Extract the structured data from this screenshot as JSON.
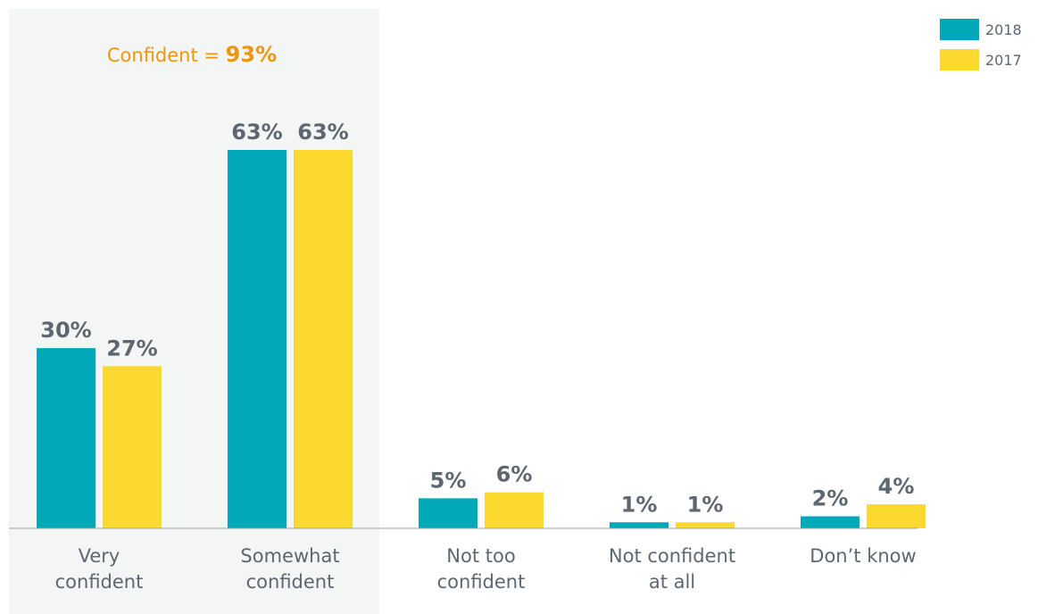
{
  "chart_data": {
    "type": "bar",
    "categories": [
      [
        "Very",
        "confident"
      ],
      [
        "Somewhat",
        "confident"
      ],
      [
        "Not too",
        "confident"
      ],
      [
        "Not confident",
        "at all"
      ],
      [
        "Don’t know"
      ]
    ],
    "series": [
      {
        "name": "2018",
        "color": "#00a8b8",
        "values": [
          30,
          63,
          5,
          1,
          2
        ],
        "labels": [
          "30%",
          "63%",
          "5%",
          "1%",
          "2%"
        ]
      },
      {
        "name": "2017",
        "color": "#fbd92e",
        "values": [
          27,
          63,
          6,
          1,
          4
        ],
        "labels": [
          "27%",
          "63%",
          "6%",
          "1%",
          "4%"
        ]
      }
    ],
    "ylim": [
      0,
      70
    ],
    "grid": false,
    "legend_position": "top-right",
    "highlight": {
      "categories": [
        "Very confident",
        "Somewhat confident"
      ],
      "background": "#f4f5f5",
      "annotation_prefix": "Confident = ",
      "annotation_value": "93%",
      "annotation_color": "#f0960e"
    },
    "text_color": "#5e6670"
  }
}
